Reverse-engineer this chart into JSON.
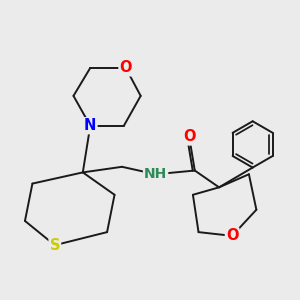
{
  "bg_color": "#ebebeb",
  "bond_color": "#1a1a1a",
  "atom_colors": {
    "O": "#ff0000",
    "N": "#0000ff",
    "S": "#cccc00",
    "NH": "#2e8b57",
    "C": "#1a1a1a"
  },
  "line_width": 1.4,
  "font_size": 10.5
}
